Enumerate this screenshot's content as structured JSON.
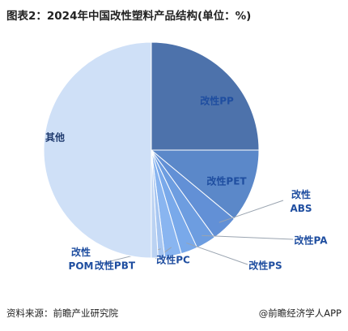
{
  "chart_data": {
    "type": "pie",
    "title": "图表2：2024年中国改性塑料产品结构(单位：%)",
    "categories": [
      "改性PP",
      "改性PET",
      "改性ABS",
      "改性PA",
      "改性PS",
      "改性PC",
      "改性PBT",
      "改性POM",
      "其他"
    ],
    "values": [
      25,
      11,
      4,
      3,
      2.5,
      2.5,
      1,
      1,
      50
    ],
    "colors": [
      "#4d72ab",
      "#5b88c9",
      "#6290d6",
      "#6d9de0",
      "#79a9ea",
      "#89b5f0",
      "#a7c6f1",
      "#bbd2f2",
      "#cfe0f7"
    ],
    "label_colors": [
      "#1f4ea0",
      "#1f4ea0",
      "#1f4ea0",
      "#1f4ea0",
      "#1f4ea0",
      "#1f4ea0",
      "#1f4ea0",
      "#1f4ea0",
      "#1f3a6e"
    ],
    "source": "资料来源：前瞻产业研究院",
    "brand": "@前瞻经济学人APP"
  }
}
